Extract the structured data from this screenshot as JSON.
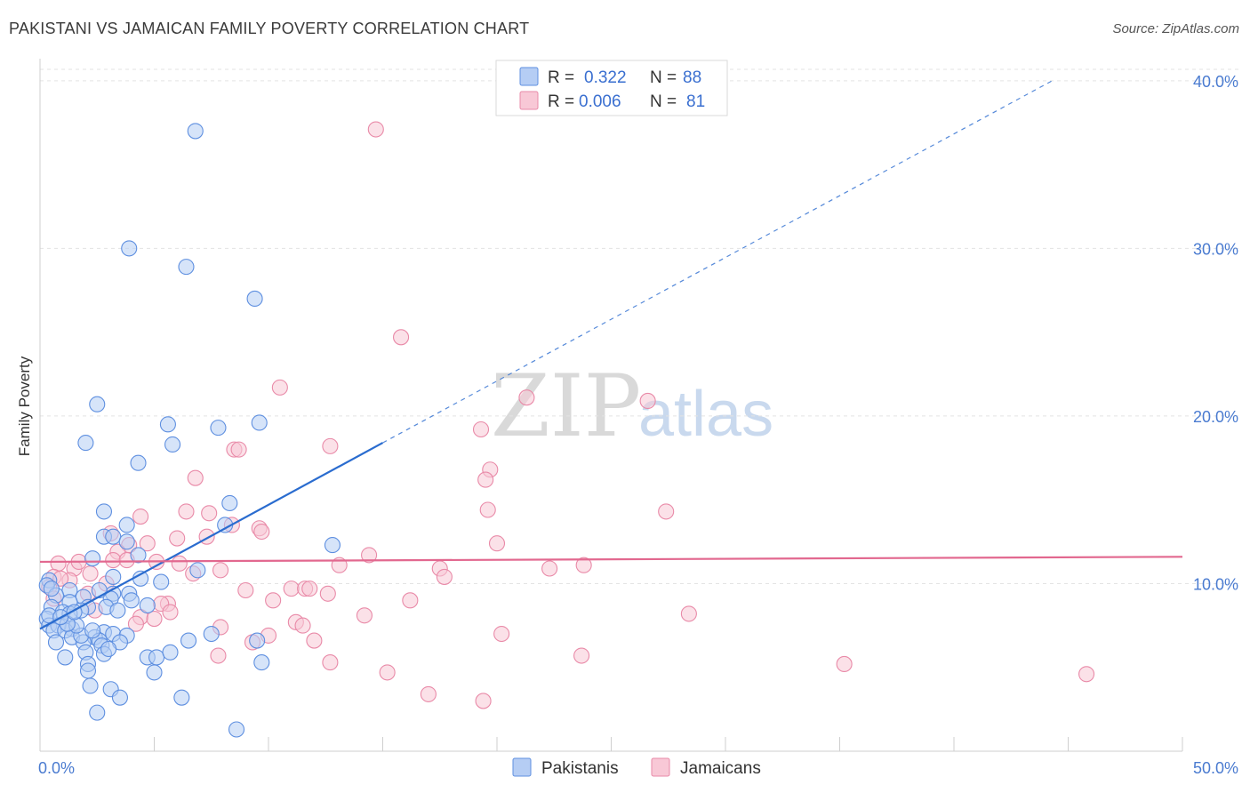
{
  "title": "PAKISTANI VS JAMAICAN FAMILY POVERTY CORRELATION CHART",
  "source": "Source: ZipAtlas.com",
  "watermark": {
    "zip": "ZIP",
    "atlas": "atlas"
  },
  "colors": {
    "blue_fill": "#b5cdf4",
    "blue_stroke": "#5e8fe0",
    "blue_line": "#2a6ccf",
    "pink_fill": "#f8c8d6",
    "pink_stroke": "#e98aa8",
    "pink_line": "#e2688f",
    "tick_label": "#4a7bd0",
    "grid": "#e3e3e3"
  },
  "legend_box": {
    "row1": {
      "r_label": "R =",
      "r_value": "0.322",
      "n_label": "N =",
      "n_value": "88"
    },
    "row2": {
      "r_label": "R =",
      "r_value": "0.006",
      "n_label": "N =",
      "n_value": "81"
    }
  },
  "chart_data": {
    "type": "scatter",
    "title": "PAKISTANI VS JAMAICAN FAMILY POVERTY CORRELATION CHART",
    "xlabel": "",
    "ylabel": "Family Poverty",
    "xlim": [
      0,
      50
    ],
    "ylim": [
      0,
      41
    ],
    "x_tick_labels": [
      "0.0%",
      "50.0%"
    ],
    "y_ticks": [
      10,
      20,
      30,
      40
    ],
    "y_tick_labels": [
      "10.0%",
      "20.0%",
      "30.0%",
      "40.0%"
    ],
    "grid": "horizontal dashed",
    "legend_position": "bottom-center",
    "series": [
      {
        "name": "Pakistanis",
        "color": "#5e8fe0",
        "R": 0.322,
        "N": 88,
        "trend": {
          "x0": 0,
          "y0": 7.3,
          "x1": 15,
          "y1": 18.4,
          "dashed_to_x": 44.3,
          "dashed_to_y": 40.0
        },
        "points": [
          [
            6.8,
            37.0
          ],
          [
            3.9,
            30.0
          ],
          [
            6.4,
            28.9
          ],
          [
            9.4,
            27.0
          ],
          [
            2.5,
            20.7
          ],
          [
            5.6,
            19.5
          ],
          [
            9.6,
            19.6
          ],
          [
            7.8,
            19.3
          ],
          [
            2.0,
            18.4
          ],
          [
            5.8,
            18.3
          ],
          [
            4.3,
            17.2
          ],
          [
            8.3,
            14.8
          ],
          [
            2.8,
            14.3
          ],
          [
            3.8,
            13.5
          ],
          [
            8.1,
            13.5
          ],
          [
            12.8,
            12.3
          ],
          [
            2.8,
            12.8
          ],
          [
            3.2,
            12.8
          ],
          [
            3.8,
            12.5
          ],
          [
            2.3,
            11.5
          ],
          [
            4.3,
            11.7
          ],
          [
            6.9,
            10.8
          ],
          [
            0.4,
            10.2
          ],
          [
            0.3,
            9.9
          ],
          [
            3.2,
            10.4
          ],
          [
            4.4,
            10.3
          ],
          [
            5.3,
            10.1
          ],
          [
            1.3,
            9.6
          ],
          [
            0.7,
            9.3
          ],
          [
            3.2,
            9.4
          ],
          [
            3.9,
            9.4
          ],
          [
            1.9,
            9.2
          ],
          [
            3.1,
            9.1
          ],
          [
            4.0,
            9.0
          ],
          [
            1.3,
            8.9
          ],
          [
            2.1,
            8.6
          ],
          [
            0.5,
            8.6
          ],
          [
            1.0,
            8.3
          ],
          [
            2.9,
            8.6
          ],
          [
            4.7,
            8.7
          ],
          [
            1.8,
            8.4
          ],
          [
            1.3,
            8.2
          ],
          [
            0.3,
            7.9
          ],
          [
            0.4,
            7.5
          ],
          [
            1.4,
            7.3
          ],
          [
            0.8,
            7.5
          ],
          [
            0.6,
            7.2
          ],
          [
            1.1,
            7.2
          ],
          [
            2.8,
            7.1
          ],
          [
            3.2,
            7.0
          ],
          [
            2.4,
            6.8
          ],
          [
            1.4,
            6.8
          ],
          [
            2.6,
            6.6
          ],
          [
            3.8,
            6.9
          ],
          [
            7.5,
            7.0
          ],
          [
            6.5,
            6.6
          ],
          [
            9.5,
            6.6
          ],
          [
            1.9,
            6.5
          ],
          [
            0.7,
            6.5
          ],
          [
            2.7,
            6.3
          ],
          [
            3.5,
            6.5
          ],
          [
            2.8,
            5.8
          ],
          [
            1.1,
            5.6
          ],
          [
            2.0,
            5.9
          ],
          [
            4.7,
            5.6
          ],
          [
            5.1,
            5.6
          ],
          [
            5.7,
            5.9
          ],
          [
            2.1,
            5.2
          ],
          [
            9.7,
            5.3
          ],
          [
            2.1,
            4.8
          ],
          [
            5.0,
            4.7
          ],
          [
            2.2,
            3.9
          ],
          [
            3.1,
            3.7
          ],
          [
            3.5,
            3.2
          ],
          [
            6.2,
            3.2
          ],
          [
            2.5,
            2.3
          ],
          [
            8.6,
            1.3
          ],
          [
            1.8,
            6.9
          ],
          [
            3.0,
            6.1
          ],
          [
            0.4,
            8.1
          ],
          [
            1.6,
            7.5
          ],
          [
            2.3,
            7.2
          ],
          [
            1.2,
            7.6
          ],
          [
            3.4,
            8.4
          ],
          [
            0.9,
            8.0
          ],
          [
            2.6,
            9.6
          ],
          [
            0.5,
            9.7
          ],
          [
            1.5,
            8.3
          ]
        ]
      },
      {
        "name": "Jamaicans",
        "color": "#e98aa8",
        "R": 0.006,
        "N": 81,
        "trend": {
          "x0": 0,
          "y0": 11.3,
          "x1": 50,
          "y1": 11.6
        },
        "points": [
          [
            14.7,
            37.1
          ],
          [
            15.8,
            24.7
          ],
          [
            10.5,
            21.7
          ],
          [
            21.3,
            21.1
          ],
          [
            26.6,
            20.9
          ],
          [
            19.3,
            19.2
          ],
          [
            12.7,
            18.2
          ],
          [
            8.5,
            18.0
          ],
          [
            8.7,
            18.0
          ],
          [
            19.7,
            16.8
          ],
          [
            19.5,
            16.2
          ],
          [
            6.8,
            16.3
          ],
          [
            19.6,
            14.4
          ],
          [
            27.4,
            14.3
          ],
          [
            6.4,
            14.3
          ],
          [
            7.4,
            14.2
          ],
          [
            4.4,
            14.0
          ],
          [
            3.1,
            13.0
          ],
          [
            8.4,
            13.5
          ],
          [
            9.6,
            13.3
          ],
          [
            9.7,
            13.1
          ],
          [
            6.0,
            12.7
          ],
          [
            7.3,
            12.8
          ],
          [
            20.0,
            12.4
          ],
          [
            4.7,
            12.4
          ],
          [
            3.9,
            12.3
          ],
          [
            3.4,
            11.9
          ],
          [
            14.4,
            11.7
          ],
          [
            3.2,
            11.4
          ],
          [
            3.8,
            11.4
          ],
          [
            5.1,
            11.3
          ],
          [
            6.1,
            11.2
          ],
          [
            13.1,
            11.1
          ],
          [
            22.3,
            10.9
          ],
          [
            23.8,
            11.1
          ],
          [
            17.5,
            10.9
          ],
          [
            0.8,
            11.2
          ],
          [
            1.5,
            10.9
          ],
          [
            2.2,
            10.6
          ],
          [
            0.6,
            10.4
          ],
          [
            7.9,
            10.8
          ],
          [
            6.7,
            10.6
          ],
          [
            17.7,
            10.4
          ],
          [
            1.3,
            10.2
          ],
          [
            0.9,
            10.3
          ],
          [
            2.9,
            10.0
          ],
          [
            0.4,
            9.8
          ],
          [
            9.0,
            9.6
          ],
          [
            11.0,
            9.7
          ],
          [
            11.6,
            9.7
          ],
          [
            11.8,
            9.7
          ],
          [
            12.6,
            9.4
          ],
          [
            0.6,
            9.1
          ],
          [
            2.1,
            9.4
          ],
          [
            16.2,
            9.0
          ],
          [
            10.2,
            9.0
          ],
          [
            5.6,
            8.8
          ],
          [
            5.3,
            8.8
          ],
          [
            28.4,
            8.2
          ],
          [
            5.7,
            8.3
          ],
          [
            14.2,
            8.1
          ],
          [
            4.4,
            8.0
          ],
          [
            5.0,
            7.9
          ],
          [
            11.2,
            7.7
          ],
          [
            11.5,
            7.5
          ],
          [
            7.9,
            7.4
          ],
          [
            20.2,
            7.0
          ],
          [
            10.0,
            6.9
          ],
          [
            12.0,
            6.6
          ],
          [
            9.3,
            6.5
          ],
          [
            7.8,
            5.7
          ],
          [
            23.7,
            5.7
          ],
          [
            12.7,
            5.3
          ],
          [
            35.2,
            5.2
          ],
          [
            15.2,
            4.7
          ],
          [
            45.8,
            4.6
          ],
          [
            17.0,
            3.4
          ],
          [
            19.4,
            3.0
          ],
          [
            2.4,
            8.4
          ],
          [
            1.7,
            11.3
          ],
          [
            4.2,
            7.6
          ]
        ]
      }
    ]
  }
}
